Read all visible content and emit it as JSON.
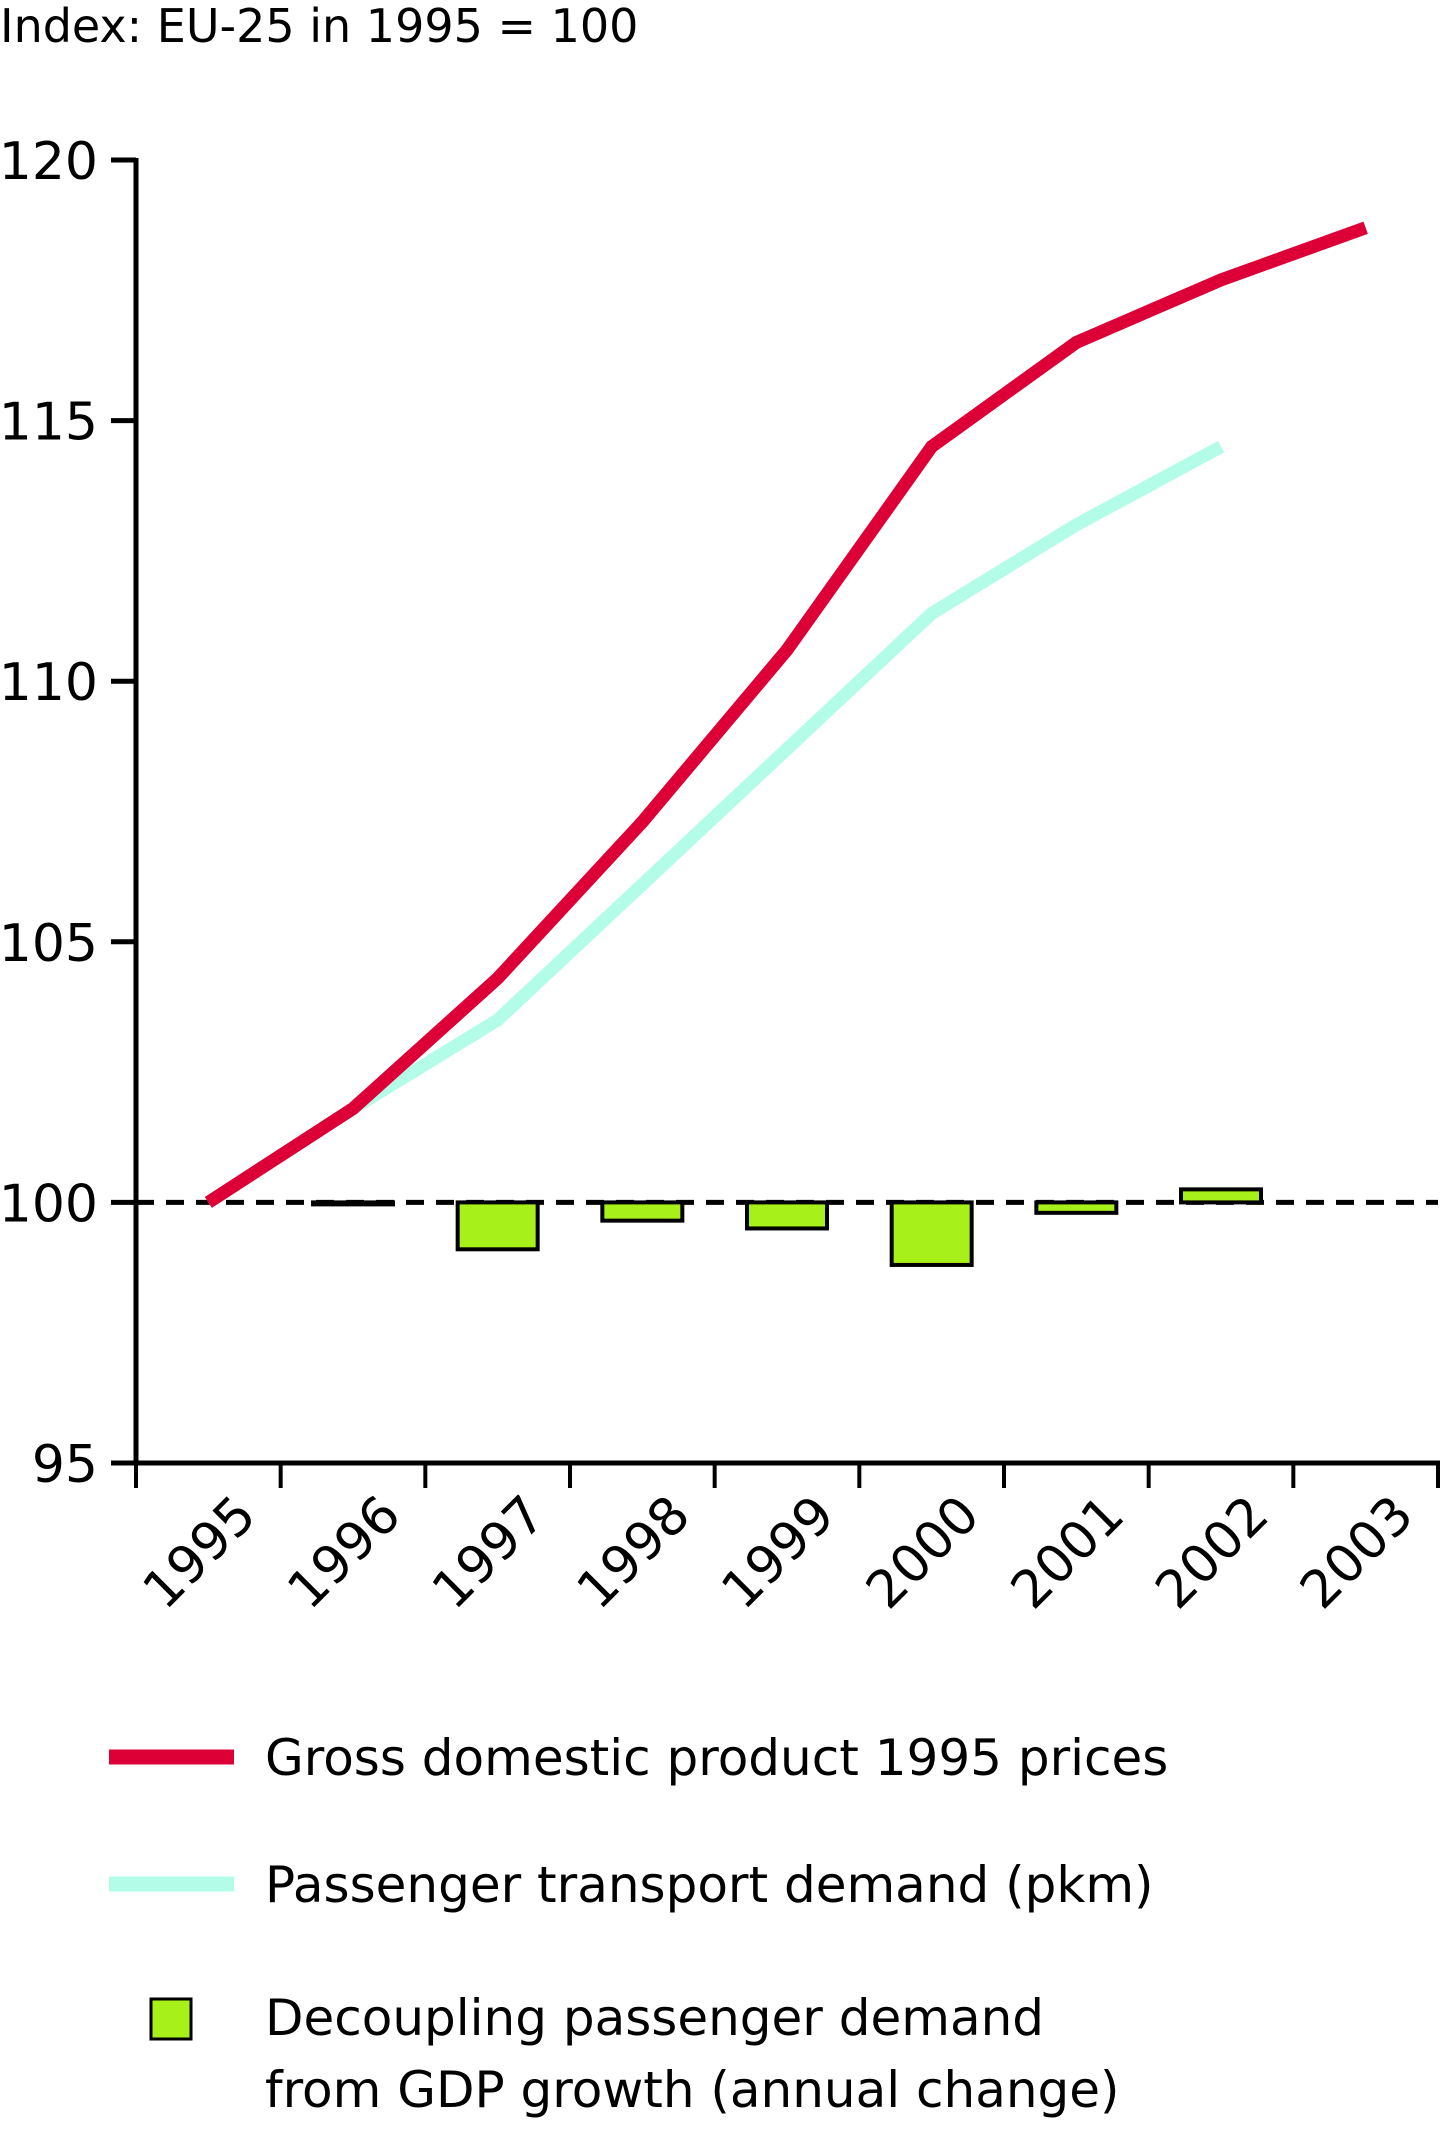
{
  "chart_data": {
    "type": "line",
    "title": "Index: EU-25 in 1995 = 100",
    "xlabel": "",
    "ylabel": "Index: EU-25 in 1995 = 100",
    "categories": [
      "1995",
      "1996",
      "1997",
      "1998",
      "1999",
      "2000",
      "2001",
      "2002",
      "2003"
    ],
    "ylim": [
      95,
      120
    ],
    "yticks": [
      95,
      100,
      105,
      110,
      115,
      120
    ],
    "ytick_labels": [
      "95",
      "100",
      "105",
      "110",
      "115",
      "120"
    ],
    "reference_line": {
      "value": 100,
      "style": "dashed"
    },
    "grid": false,
    "legend_position": "bottom",
    "series": [
      {
        "name": "Gross domestic product 1995 prices",
        "type": "line",
        "color": "#DC0037",
        "values": [
          100,
          101.8,
          104.3,
          107.3,
          110.6,
          114.5,
          116.5,
          117.7,
          118.7
        ]
      },
      {
        "name": "Passenger transport demand (pkm)",
        "type": "line",
        "color": "#B3FCE8",
        "values": [
          100,
          101.8,
          103.5,
          106.1,
          108.7,
          111.3,
          113.0,
          114.5,
          null
        ]
      },
      {
        "name": "Decoupling passenger demand from GDP growth (annual change)",
        "type": "bar",
        "color": "#A8F01A",
        "baseline": 100,
        "values": [
          null,
          0.0,
          -0.9,
          -0.35,
          -0.5,
          -1.2,
          -0.2,
          0.25,
          null
        ]
      }
    ],
    "legend": [
      {
        "label": "Gross domestic product 1995 prices",
        "swatch": "line",
        "color": "#DC0037"
      },
      {
        "label": "Passenger transport demand (pkm)",
        "swatch": "line",
        "color": "#B3FCE8"
      },
      {
        "label_lines": [
          "Decoupling passenger demand",
          "from GDP growth (annual change)"
        ],
        "swatch": "box",
        "color": "#A8F01A"
      }
    ]
  }
}
